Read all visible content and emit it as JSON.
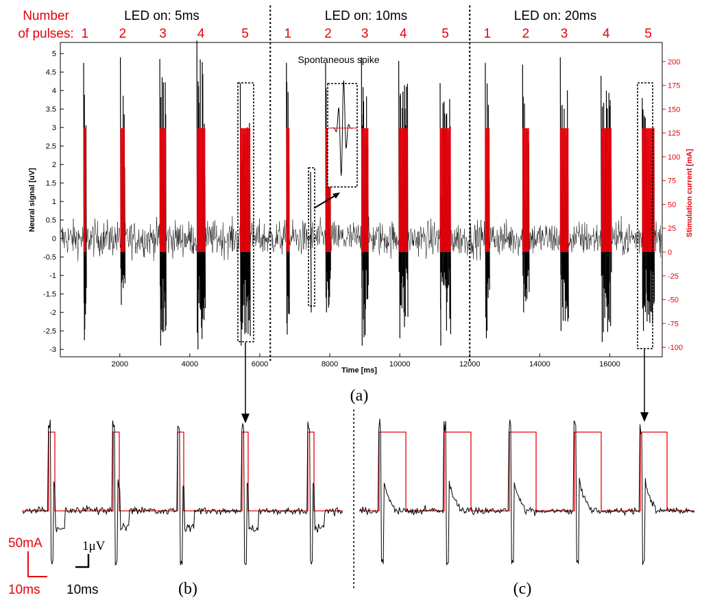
{
  "header": {
    "pulses_label_line1": "Number",
    "pulses_label_line2": "of pulses:",
    "groups": [
      {
        "label": "LED on: 5ms",
        "pulse_numbers": [
          "1",
          "2",
          "3",
          "4",
          "5"
        ]
      },
      {
        "label": "LED on: 10ms",
        "pulse_numbers": [
          "1",
          "2",
          "3",
          "4",
          "5"
        ]
      },
      {
        "label": "LED on: 20ms",
        "pulse_numbers": [
          "1",
          "2",
          "3",
          "4",
          "5"
        ]
      }
    ]
  },
  "colors": {
    "signal": "#000000",
    "stimulus": "#e8000b",
    "accent_text": "#e8000b"
  },
  "chart_data": [
    {
      "panel": "(a)",
      "type": "line",
      "xlabel": "Time [ms]",
      "ylabel": "Neural signal [uV]",
      "y2label": "Stimulation current [mA]",
      "xlim": [
        300,
        17500
      ],
      "ylim": [
        -3.2,
        5.3
      ],
      "y2lim": [
        -110,
        220
      ],
      "xticks": [
        2000,
        4000,
        6000,
        8000,
        10000,
        12000,
        14000,
        16000
      ],
      "yticks": [
        -3,
        -2.5,
        -2,
        -1.5,
        -1,
        -0.5,
        0,
        0.5,
        1,
        1.5,
        2,
        2.5,
        3,
        3.5,
        4,
        4.5,
        5
      ],
      "y2ticks": [
        -100,
        -75,
        -50,
        -25,
        0,
        25,
        50,
        75,
        100,
        125,
        150,
        175,
        200
      ],
      "group_boundaries_ms": [
        6300,
        12000
      ],
      "annotation": "Spontaneous spike",
      "series": [
        {
          "name": "Neural signal",
          "axis": "left",
          "noise_amplitude_uV": 0.6,
          "evoked_bursts": [
            {
              "t": 1000,
              "pulses": 1,
              "peak": 4.75,
              "trough": -2.75
            },
            {
              "t": 2080,
              "pulses": 2,
              "peak": 4.9,
              "trough": -1.8
            },
            {
              "t": 3230,
              "pulses": 3,
              "peak": 4.85,
              "trough": -2.9
            },
            {
              "t": 4320,
              "pulses": 4,
              "peak": 5.35,
              "trough": -3.0
            },
            {
              "t": 5580,
              "pulses": 5,
              "peak": 4.2,
              "trough": -2.9
            },
            {
              "t": 6800,
              "pulses": 1,
              "peak": 4.75,
              "trough": -2.6
            },
            {
              "t": 7950,
              "pulses": 2,
              "peak": 4.75,
              "trough": -2.0
            },
            {
              "t": 9000,
              "pulses": 3,
              "peak": 4.9,
              "trough": -2.9
            },
            {
              "t": 10100,
              "pulses": 4,
              "peak": 4.8,
              "trough": -2.7
            },
            {
              "t": 11300,
              "pulses": 5,
              "peak": 4.2,
              "trough": -2.9
            },
            {
              "t": 12500,
              "pulses": 1,
              "peak": 4.75,
              "trough": -2.7
            },
            {
              "t": 13600,
              "pulses": 2,
              "peak": 4.7,
              "trough": -2.0
            },
            {
              "t": 14700,
              "pulses": 3,
              "peak": 4.9,
              "trough": -2.5
            },
            {
              "t": 15900,
              "pulses": 4,
              "peak": 4.4,
              "trough": -2.8
            },
            {
              "t": 17100,
              "pulses": 5,
              "peak": 3.8,
              "trough": -2.5
            }
          ],
          "spontaneous_spike": {
            "t": 7450,
            "peak": 1.8,
            "trough": -2.0
          }
        },
        {
          "name": "Stimulation current",
          "axis": "right",
          "pulse_amplitude_mA": 130,
          "pulse_width_ms_by_group": [
            5,
            10,
            20
          ],
          "pulse_interval_ms": 55
        }
      ]
    },
    {
      "panel": "(b)",
      "type": "line",
      "description_scale": {
        "current_bar": "50mA",
        "time_bar_red": "10ms",
        "voltage_bar": "1μV",
        "time_bar_black": "10ms"
      },
      "stimulus_pulse_width_ms": 5,
      "pulses": 5
    },
    {
      "panel": "(c)",
      "type": "line",
      "stimulus_pulse_width_ms": 20,
      "pulses": 5
    }
  ],
  "scalebars": {
    "current_label": "50mA",
    "time_label_red": "10ms",
    "voltage_label": "1μV",
    "time_label_black": "10ms"
  },
  "captions": {
    "a": "(a)",
    "b": "(b)",
    "c": "(c)"
  }
}
